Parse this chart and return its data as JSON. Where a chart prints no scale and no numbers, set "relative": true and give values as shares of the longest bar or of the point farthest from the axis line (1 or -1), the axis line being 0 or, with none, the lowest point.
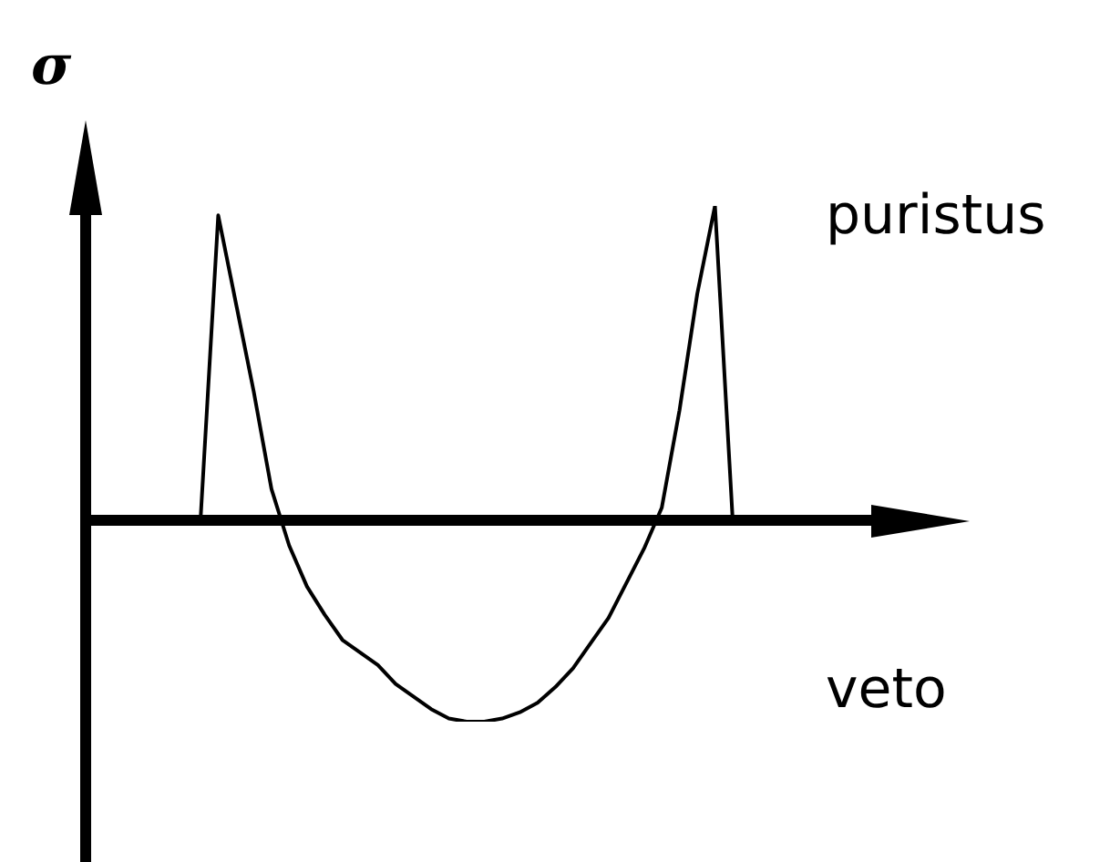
{
  "chart_data": {
    "type": "line",
    "relative": true,
    "ylabel": "σ",
    "annotations": [
      "puristus",
      "veto"
    ],
    "marker": "none",
    "categories": [
      null,
      null,
      null,
      null,
      null,
      null,
      null,
      null,
      null,
      null,
      null,
      null,
      null,
      null,
      null,
      null,
      null,
      null,
      null,
      null,
      null,
      null,
      null,
      null,
      null,
      null,
      null,
      null,
      null,
      null,
      null
    ],
    "series": [
      {
        "color": "#000000",
        "values": [
          0,
          0.97,
          0.69,
          0.41,
          0.1,
          -0.08,
          -0.21,
          -0.3,
          -0.38,
          -0.42,
          -0.46,
          -0.52,
          -0.56,
          -0.6,
          -0.63,
          -0.64,
          -0.64,
          -0.63,
          -0.61,
          -0.58,
          -0.53,
          -0.47,
          -0.39,
          -0.31,
          -0.2,
          -0.09,
          0.04,
          0.35,
          0.72,
          1,
          0
        ]
      }
    ]
  }
}
